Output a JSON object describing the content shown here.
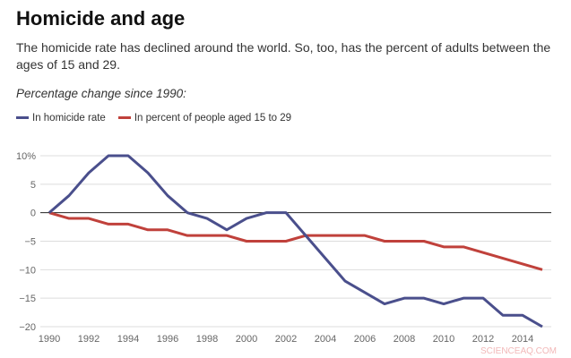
{
  "title": "Homicide and age",
  "subtitle": "The homicide rate has declined around the world. So, too, has the percent of adults between the ages of 15 and 29.",
  "note": "Percentage change since 1990:",
  "watermark": "SCIENCEAQ.COM",
  "chart_data": {
    "type": "line",
    "x": [
      1990,
      1991,
      1992,
      1993,
      1994,
      1995,
      1996,
      1997,
      1998,
      1999,
      2000,
      2001,
      2002,
      2003,
      2004,
      2005,
      2006,
      2007,
      2008,
      2009,
      2010,
      2011,
      2012,
      2013,
      2014,
      2015
    ],
    "series": [
      {
        "name": "In homicide rate",
        "color": "#4a4f8c",
        "values": [
          0,
          3,
          7,
          10,
          10,
          7,
          3,
          0,
          -1,
          -3,
          -1,
          0,
          0,
          -4,
          -8,
          -12,
          -14,
          -16,
          -15,
          -15,
          -16,
          -15,
          -15,
          -18,
          -18,
          -20
        ]
      },
      {
        "name": "In percent of people aged 15 to 29",
        "color": "#c0413b",
        "values": [
          0,
          -1,
          -1,
          -2,
          -2,
          -3,
          -3,
          -4,
          -4,
          -4,
          -5,
          -5,
          -5,
          -4,
          -4,
          -4,
          -4,
          -5,
          -5,
          -5,
          -6,
          -6,
          -7,
          -8,
          -9,
          -10
        ]
      }
    ],
    "ylim": [
      -20,
      10
    ],
    "yticks": [
      "10%",
      "5",
      "0",
      "-5",
      "-10",
      "-15",
      "-20"
    ],
    "xticks": [
      "1990",
      "1992",
      "1994",
      "1996",
      "1998",
      "2000",
      "2002",
      "2004",
      "2006",
      "2008",
      "2010",
      "2012",
      "2014"
    ],
    "grid": true,
    "legend": "top-left"
  }
}
